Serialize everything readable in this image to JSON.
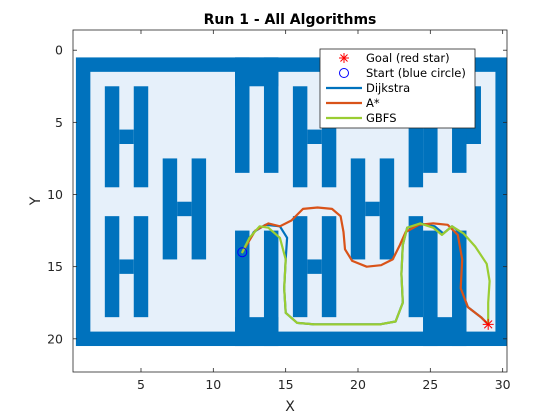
{
  "chart_data": {
    "type": "line",
    "title": "Run 1 - All Algorithms",
    "xlabel": "X",
    "ylabel": "Y",
    "xlim": [
      0.3,
      30.3
    ],
    "ylim": [
      -1.4,
      22.3
    ],
    "y_reversed": true,
    "xticks": [
      5,
      10,
      15,
      20,
      25,
      30
    ],
    "yticks": [
      0,
      5,
      10,
      15,
      20
    ],
    "grid": false,
    "legend_position": "top-right",
    "colors": {
      "wall": "#0072BD",
      "free": "#E6F0FA",
      "dijkstra": "#0072BD",
      "astar": "#D95319",
      "gbfs": "#9ACD32",
      "goal": "#FF0000",
      "start": "#0000FF"
    },
    "grid_map": {
      "extent_x": [
        0.5,
        30.5
      ],
      "extent_y": [
        0.5,
        20.5
      ],
      "free_area": {
        "x": [
          1.5,
          29.5
        ],
        "y": [
          1.5,
          19.5
        ]
      },
      "walls": [
        {
          "x": [
            11.5,
            14.5
          ],
          "y": [
            0.5,
            2.5
          ]
        },
        {
          "x": [
            11.5,
            12.5
          ],
          "y": [
            0.5,
            8.5
          ]
        },
        {
          "x": [
            13.5,
            14.5
          ],
          "y": [
            0.5,
            8.5
          ]
        },
        {
          "x": [
            24.5,
            27.5
          ],
          "y": [
            0.5,
            2.5
          ]
        },
        {
          "x": [
            24.5,
            25.5
          ],
          "y": [
            0.5,
            8.5
          ]
        },
        {
          "x": [
            26.5,
            27.5
          ],
          "y": [
            0.5,
            8.5
          ]
        },
        {
          "x": [
            11.5,
            12.5
          ],
          "y": [
            12.5,
            20.5
          ]
        },
        {
          "x": [
            13.5,
            14.5
          ],
          "y": [
            12.5,
            20.5
          ]
        },
        {
          "x": [
            11.5,
            14.5
          ],
          "y": [
            18.5,
            20.5
          ]
        },
        {
          "x": [
            24.5,
            25.5
          ],
          "y": [
            12.5,
            20.5
          ]
        },
        {
          "x": [
            26.5,
            27.5
          ],
          "y": [
            12.5,
            20.5
          ]
        },
        {
          "x": [
            24.5,
            27.5
          ],
          "y": [
            18.5,
            20.5
          ]
        },
        {
          "x": [
            2.5,
            3.5
          ],
          "y": [
            2.5,
            9.5
          ]
        },
        {
          "x": [
            4.5,
            5.5
          ],
          "y": [
            2.5,
            9.5
          ]
        },
        {
          "x": [
            3.5,
            4.5
          ],
          "y": [
            5.5,
            6.5
          ]
        },
        {
          "x": [
            2.5,
            3.5
          ],
          "y": [
            11.5,
            18.5
          ]
        },
        {
          "x": [
            4.5,
            5.5
          ],
          "y": [
            11.5,
            18.5
          ]
        },
        {
          "x": [
            3.5,
            4.5
          ],
          "y": [
            14.5,
            15.5
          ]
        },
        {
          "x": [
            6.5,
            7.5
          ],
          "y": [
            7.5,
            14.5
          ]
        },
        {
          "x": [
            8.5,
            9.5
          ],
          "y": [
            7.5,
            14.5
          ]
        },
        {
          "x": [
            7.5,
            8.5
          ],
          "y": [
            10.5,
            11.5
          ]
        },
        {
          "x": [
            15.5,
            16.5
          ],
          "y": [
            2.5,
            9.5
          ]
        },
        {
          "x": [
            17.5,
            18.5
          ],
          "y": [
            2.5,
            9.5
          ]
        },
        {
          "x": [
            16.5,
            17.5
          ],
          "y": [
            5.5,
            6.5
          ]
        },
        {
          "x": [
            15.5,
            16.5
          ],
          "y": [
            11.5,
            18.5
          ]
        },
        {
          "x": [
            17.5,
            18.5
          ],
          "y": [
            11.5,
            18.5
          ]
        },
        {
          "x": [
            16.5,
            17.5
          ],
          "y": [
            14.5,
            15.5
          ]
        },
        {
          "x": [
            19.5,
            20.5
          ],
          "y": [
            7.5,
            14.5
          ]
        },
        {
          "x": [
            21.5,
            22.5
          ],
          "y": [
            7.5,
            14.5
          ]
        },
        {
          "x": [
            20.5,
            21.5
          ],
          "y": [
            10.5,
            11.5
          ]
        },
        {
          "x": [
            23.5,
            24.5
          ],
          "y": [
            2.5,
            9.5
          ]
        },
        {
          "x": [
            23.5,
            24.5
          ],
          "y": [
            11.5,
            18.5
          ]
        },
        {
          "x": [
            27.5,
            28.5
          ],
          "y": [
            2.5,
            6.5
          ]
        }
      ]
    },
    "series": [
      {
        "name": "Dijkstra",
        "points": [
          [
            12,
            14
          ],
          [
            12.8,
            12.6
          ],
          [
            13.6,
            12.1
          ],
          [
            14.6,
            12.2
          ],
          [
            15.1,
            13.0
          ],
          [
            15.0,
            14.5
          ],
          [
            14.9,
            16.5
          ],
          [
            15.0,
            18.2
          ],
          [
            15.8,
            18.9
          ],
          [
            17.0,
            19.0
          ],
          [
            18.5,
            19.0
          ],
          [
            20.0,
            19.0
          ],
          [
            21.5,
            19.0
          ],
          [
            22.6,
            18.8
          ],
          [
            23.1,
            17.5
          ],
          [
            23.0,
            15.5
          ],
          [
            23.1,
            13.5
          ],
          [
            23.4,
            12.3
          ],
          [
            24.3,
            12.0
          ],
          [
            25.3,
            12.2
          ],
          [
            25.9,
            12.7
          ],
          [
            26.5,
            12.2
          ],
          [
            27.2,
            12.7
          ],
          [
            27.2,
            14.5
          ],
          [
            27.1,
            16.5
          ],
          [
            27.6,
            17.8
          ],
          [
            28.5,
            18.5
          ],
          [
            29,
            19
          ]
        ]
      },
      {
        "name": "A*",
        "points": [
          [
            12,
            14
          ],
          [
            12.9,
            12.5
          ],
          [
            13.8,
            12.0
          ],
          [
            14.6,
            12.2
          ],
          [
            15.4,
            11.8
          ],
          [
            16.2,
            11.0
          ],
          [
            17.2,
            10.9
          ],
          [
            18.2,
            11.0
          ],
          [
            18.8,
            11.5
          ],
          [
            19.0,
            12.6
          ],
          [
            19.1,
            13.8
          ],
          [
            19.6,
            14.6
          ],
          [
            20.6,
            15.0
          ],
          [
            21.6,
            14.9
          ],
          [
            22.4,
            14.5
          ],
          [
            22.9,
            13.5
          ],
          [
            23.3,
            12.6
          ],
          [
            24.2,
            12.1
          ],
          [
            25.2,
            12.0
          ],
          [
            26.2,
            12.1
          ],
          [
            26.9,
            12.8
          ],
          [
            27.2,
            14.5
          ],
          [
            27.1,
            16.5
          ],
          [
            27.6,
            17.8
          ],
          [
            28.5,
            18.5
          ],
          [
            29,
            19
          ]
        ]
      },
      {
        "name": "GBFS",
        "points": [
          [
            12,
            14
          ],
          [
            12.5,
            13.0
          ],
          [
            13.2,
            12.2
          ],
          [
            13.8,
            12.3
          ],
          [
            14.6,
            13.0
          ],
          [
            15.0,
            14.5
          ],
          [
            14.9,
            16.5
          ],
          [
            15.0,
            18.2
          ],
          [
            15.8,
            18.9
          ],
          [
            17.0,
            19.0
          ],
          [
            18.5,
            19.0
          ],
          [
            20.0,
            19.0
          ],
          [
            21.5,
            19.0
          ],
          [
            22.6,
            18.8
          ],
          [
            23.1,
            17.5
          ],
          [
            23.0,
            15.5
          ],
          [
            23.1,
            13.5
          ],
          [
            23.4,
            12.3
          ],
          [
            24.3,
            12.0
          ],
          [
            25.2,
            12.3
          ],
          [
            25.8,
            12.8
          ],
          [
            26.5,
            12.2
          ],
          [
            27.3,
            12.7
          ],
          [
            28.1,
            13.6
          ],
          [
            28.9,
            14.8
          ],
          [
            29.1,
            16.0
          ],
          [
            29.0,
            17.5
          ],
          [
            29,
            19
          ]
        ]
      }
    ],
    "markers": [
      {
        "name": "Goal (red star)",
        "shape": "star",
        "x": 29,
        "y": 19
      },
      {
        "name": "Start (blue circle)",
        "shape": "circle",
        "x": 12,
        "y": 14
      }
    ],
    "legend": [
      "Goal (red star)",
      "Start (blue circle)",
      "Dijkstra",
      "A*",
      "GBFS"
    ]
  }
}
